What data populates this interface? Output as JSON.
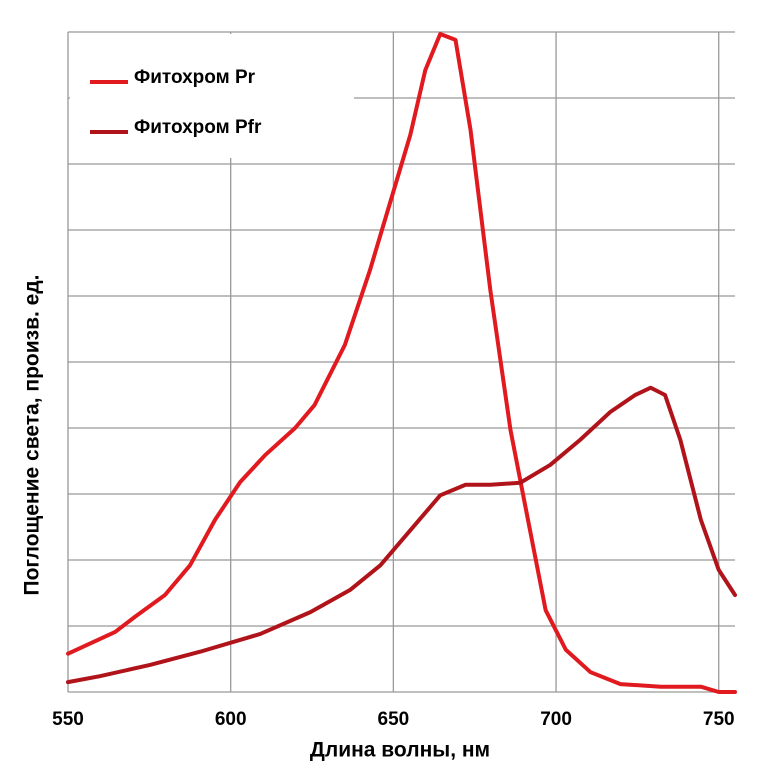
{
  "chart_data": {
    "type": "line",
    "xlabel": "Длина волны, нм",
    "ylabel": "Поглощение света, произв. ед.",
    "xlim": [
      550,
      755
    ],
    "xticks": [
      550,
      600,
      650,
      700,
      750
    ],
    "ylim": [
      0,
      1
    ],
    "yticks": [
      0,
      0.1,
      0.2,
      0.3,
      0.4,
      0.5,
      0.6,
      0.7,
      0.8,
      0.9,
      1
    ],
    "ytick_labels": false,
    "grid": true,
    "legend": "upper left",
    "series": [
      {
        "name": "Фитохром Pr",
        "color": "#e01a1f",
        "x": [
          550,
          564.5,
          570.6,
          579.8,
          587.5,
          595.2,
          602.9,
          610.6,
          619.8,
          625.8,
          635.1,
          642.8,
          650.6,
          655.2,
          659.8,
          664.4,
          669.1,
          673.7,
          679.8,
          686,
          692,
          696.8,
          703,
          710.6,
          719.8,
          732.2,
          744.5,
          750,
          755
        ],
        "values": [
          0.058,
          0.091,
          0.114,
          0.147,
          0.192,
          0.261,
          0.318,
          0.359,
          0.4,
          0.435,
          0.526,
          0.639,
          0.768,
          0.844,
          0.942,
          0.997,
          0.988,
          0.852,
          0.609,
          0.397,
          0.245,
          0.124,
          0.064,
          0.03,
          0.012,
          0.008,
          0.008,
          0,
          0
        ]
      },
      {
        "name": "Фитохром Pfr",
        "color": "#b0141a",
        "x": [
          550,
          559.8,
          575.2,
          590.6,
          609.1,
          624.5,
          636.8,
          646,
          655.2,
          664.4,
          672.2,
          679.8,
          689,
          698.2,
          707.4,
          716.6,
          724.3,
          729.1,
          733.5,
          738.2,
          744.5,
          750,
          755
        ],
        "values": [
          0.015,
          0.024,
          0.041,
          0.061,
          0.088,
          0.121,
          0.155,
          0.192,
          0.245,
          0.298,
          0.314,
          0.314,
          0.317,
          0.344,
          0.382,
          0.424,
          0.45,
          0.461,
          0.45,
          0.382,
          0.261,
          0.185,
          0.147
        ]
      }
    ]
  }
}
